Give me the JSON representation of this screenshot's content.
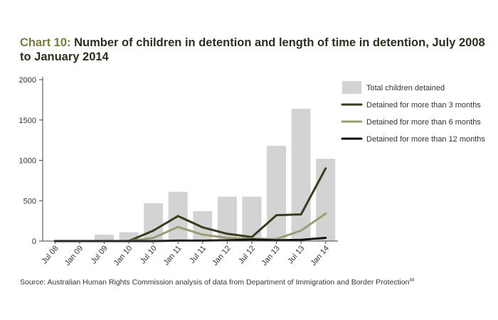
{
  "title": {
    "prefix": "Chart 10:",
    "text": "Number of children in detention and length of time in detention, July 2008 to January 2014"
  },
  "source": {
    "text": "Source: Australian Human Rights Commission analysis of data from Department of Immigration and Border Protection",
    "footnote": "48"
  },
  "chart_data": {
    "type": "bar",
    "title": "Number of children in detention and length of time in detention, July 2008 to January 2014",
    "categories": [
      "Jul 08",
      "Jan 09",
      "Jul 09",
      "Jan 10",
      "Jul 10",
      "Jan 11",
      "Jul 11",
      "Jan 12",
      "Jul 12",
      "Jan 13",
      "Jul 13",
      "Jan 14"
    ],
    "ylim": [
      0,
      2000
    ],
    "yticks": [
      0,
      500,
      1000,
      1500,
      2000
    ],
    "grid": false,
    "legend_position": "right",
    "series": [
      {
        "name": "Total children detained",
        "type": "bar",
        "color": "#d3d3d3",
        "values": [
          5,
          10,
          80,
          110,
          470,
          610,
          370,
          550,
          550,
          1180,
          1640,
          1020
        ]
      },
      {
        "name": "Detained for more than 3 months",
        "type": "line",
        "color": "#3a3a1e",
        "values": [
          0,
          0,
          0,
          0,
          130,
          310,
          170,
          90,
          50,
          320,
          330,
          900
        ]
      },
      {
        "name": "Detained for more than 6 months",
        "type": "line",
        "color": "#9c9c74",
        "values": [
          0,
          0,
          0,
          0,
          40,
          175,
          80,
          40,
          30,
          25,
          130,
          340
        ]
      },
      {
        "name": "Detained for more than 12 months",
        "type": "line",
        "color": "#111111",
        "values": [
          0,
          0,
          0,
          0,
          0,
          5,
          5,
          10,
          20,
          10,
          15,
          40
        ]
      }
    ]
  }
}
